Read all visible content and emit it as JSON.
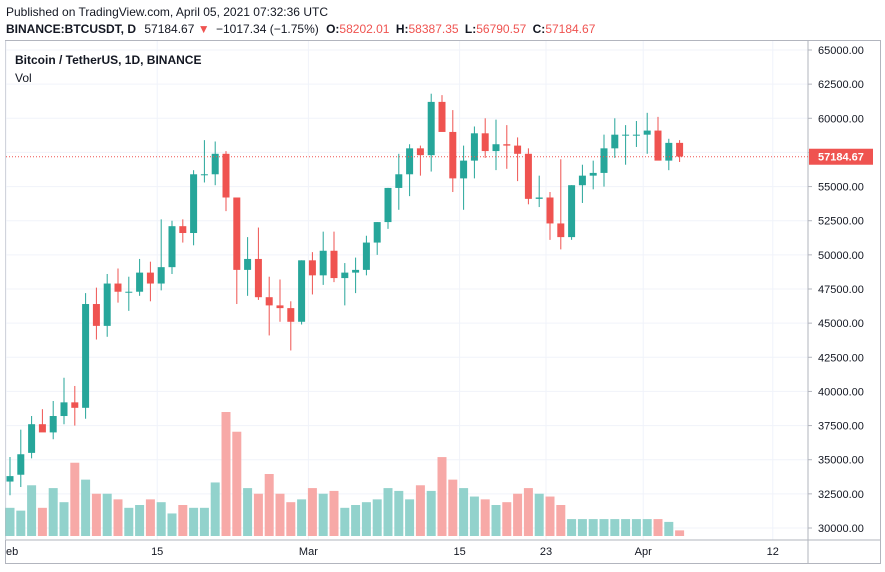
{
  "header": {
    "published": "Published on TradingView.com, April 05, 2021 07:32:36 UTC",
    "symbol_line": "BINANCE:BTCUSDT, D",
    "last": "57184.67",
    "arrow": "▼",
    "change": "−1017.34 (−1.75%)",
    "o_label": "O:",
    "o": "58202.01",
    "h_label": "H:",
    "h": "58387.35",
    "l_label": "L:",
    "l": "56790.57",
    "c_label": "C:",
    "c": "57184.67"
  },
  "legend": {
    "title": "Bitcoin / TetherUS, 1D, BINANCE",
    "volume": "Vol"
  },
  "colors": {
    "up": "#26a69a",
    "down": "#ef5350",
    "vol_up": "#92d2cc",
    "vol_down": "#f7a9a7",
    "grid": "#f0f3fa",
    "price_line": "#ef5350"
  },
  "chart_data": {
    "type": "candlestick",
    "y_ticks": [
      "65000.00",
      "62500.00",
      "60000.00",
      "57500.00",
      "55000.00",
      "52500.00",
      "50000.00",
      "47500.00",
      "45000.00",
      "42500.00",
      "40000.00",
      "37500.00",
      "35000.00",
      "32500.00",
      "30000.00"
    ],
    "x_ticks": [
      "eb",
      "15",
      "Mar",
      "15",
      "23",
      "Apr",
      "12"
    ],
    "last_price_label": "57184.67",
    "last_price": 57184.67,
    "candles": [
      {
        "o": 33400,
        "h": 35200,
        "l": 32400,
        "c": 33800
      },
      {
        "o": 33900,
        "h": 37200,
        "l": 33000,
        "c": 35400
      },
      {
        "o": 35500,
        "h": 38200,
        "l": 35100,
        "c": 37600
      },
      {
        "o": 37600,
        "h": 38700,
        "l": 37100,
        "c": 37000
      },
      {
        "o": 37000,
        "h": 39300,
        "l": 36500,
        "c": 38200
      },
      {
        "o": 38200,
        "h": 41000,
        "l": 37600,
        "c": 39200
      },
      {
        "o": 39200,
        "h": 40400,
        "l": 37500,
        "c": 38800
      },
      {
        "o": 38800,
        "h": 47200,
        "l": 38000,
        "c": 46400
      },
      {
        "o": 46400,
        "h": 47600,
        "l": 43800,
        "c": 44800
      },
      {
        "o": 44800,
        "h": 48600,
        "l": 44000,
        "c": 47900
      },
      {
        "o": 47900,
        "h": 49000,
        "l": 46500,
        "c": 47300
      },
      {
        "o": 47300,
        "h": 48400,
        "l": 45900,
        "c": 47300
      },
      {
        "o": 47300,
        "h": 49700,
        "l": 47000,
        "c": 48700
      },
      {
        "o": 48700,
        "h": 49500,
        "l": 46600,
        "c": 47900
      },
      {
        "o": 47900,
        "h": 52600,
        "l": 47400,
        "c": 49100
      },
      {
        "o": 49100,
        "h": 52500,
        "l": 48600,
        "c": 52100
      },
      {
        "o": 52100,
        "h": 52600,
        "l": 50900,
        "c": 51600
      },
      {
        "o": 51600,
        "h": 56200,
        "l": 50700,
        "c": 55900
      },
      {
        "o": 55900,
        "h": 58400,
        "l": 55300,
        "c": 55900
      },
      {
        "o": 55900,
        "h": 58300,
        "l": 55100,
        "c": 57400
      },
      {
        "o": 57400,
        "h": 57600,
        "l": 53200,
        "c": 54200
      },
      {
        "o": 54200,
        "h": 54200,
        "l": 46400,
        "c": 48900
      },
      {
        "o": 48900,
        "h": 51300,
        "l": 47000,
        "c": 49700
      },
      {
        "o": 49700,
        "h": 52000,
        "l": 46700,
        "c": 46900
      },
      {
        "o": 46900,
        "h": 48400,
        "l": 44100,
        "c": 46300
      },
      {
        "o": 46300,
        "h": 48200,
        "l": 45100,
        "c": 46100
      },
      {
        "o": 46100,
        "h": 46600,
        "l": 43000,
        "c": 45100
      },
      {
        "o": 45100,
        "h": 49600,
        "l": 44900,
        "c": 49600
      },
      {
        "o": 49600,
        "h": 50200,
        "l": 47100,
        "c": 48500
      },
      {
        "o": 48500,
        "h": 51700,
        "l": 47800,
        "c": 50300
      },
      {
        "o": 50300,
        "h": 51700,
        "l": 48000,
        "c": 48300
      },
      {
        "o": 48300,
        "h": 49400,
        "l": 46300,
        "c": 48700
      },
      {
        "o": 48700,
        "h": 49800,
        "l": 47200,
        "c": 48900
      },
      {
        "o": 48900,
        "h": 51400,
        "l": 48500,
        "c": 50900
      },
      {
        "o": 50900,
        "h": 52400,
        "l": 50000,
        "c": 52400
      },
      {
        "o": 52400,
        "h": 54900,
        "l": 51900,
        "c": 54900
      },
      {
        "o": 54900,
        "h": 57400,
        "l": 53300,
        "c": 55900
      },
      {
        "o": 55900,
        "h": 58100,
        "l": 54300,
        "c": 57800
      },
      {
        "o": 57800,
        "h": 58000,
        "l": 55800,
        "c": 57300
      },
      {
        "o": 57300,
        "h": 61800,
        "l": 56100,
        "c": 61200
      },
      {
        "o": 61200,
        "h": 61700,
        "l": 59200,
        "c": 59000
      },
      {
        "o": 59000,
        "h": 60600,
        "l": 54600,
        "c": 55600
      },
      {
        "o": 55600,
        "h": 58000,
        "l": 53300,
        "c": 56900
      },
      {
        "o": 56900,
        "h": 59400,
        "l": 55600,
        "c": 58900
      },
      {
        "o": 58900,
        "h": 60000,
        "l": 57100,
        "c": 57600
      },
      {
        "o": 57600,
        "h": 59900,
        "l": 56200,
        "c": 58100
      },
      {
        "o": 58100,
        "h": 59500,
        "l": 56300,
        "c": 58000
      },
      {
        "o": 58000,
        "h": 58600,
        "l": 55400,
        "c": 57400
      },
      {
        "o": 57400,
        "h": 57800,
        "l": 53700,
        "c": 54100
      },
      {
        "o": 54100,
        "h": 55800,
        "l": 53500,
        "c": 54200
      },
      {
        "o": 54200,
        "h": 54600,
        "l": 51100,
        "c": 52300
      },
      {
        "o": 52300,
        "h": 57000,
        "l": 50400,
        "c": 51300
      },
      {
        "o": 51300,
        "h": 55100,
        "l": 51100,
        "c": 55100
      },
      {
        "o": 55100,
        "h": 56600,
        "l": 53800,
        "c": 55800
      },
      {
        "o": 55800,
        "h": 56900,
        "l": 54800,
        "c": 56000
      },
      {
        "o": 56000,
        "h": 58800,
        "l": 55000,
        "c": 57800
      },
      {
        "o": 57800,
        "h": 60000,
        "l": 57100,
        "c": 58800
      },
      {
        "o": 58800,
        "h": 59500,
        "l": 56600,
        "c": 58800
      },
      {
        "o": 58800,
        "h": 59800,
        "l": 57900,
        "c": 58800
      },
      {
        "o": 58800,
        "h": 60400,
        "l": 57400,
        "c": 59100
      },
      {
        "o": 59100,
        "h": 60100,
        "l": 57000,
        "c": 56900
      },
      {
        "o": 56900,
        "h": 58500,
        "l": 56200,
        "c": 58200
      },
      {
        "o": 58200,
        "h": 58400,
        "l": 56800,
        "c": 57200
      }
    ],
    "volumes_pct": [
      10,
      9,
      18,
      10,
      17,
      12,
      26,
      20,
      15,
      15,
      13,
      10,
      11,
      13,
      12,
      8,
      11,
      10,
      10,
      19,
      44,
      37,
      17,
      15,
      22,
      15,
      12,
      13,
      17,
      15,
      16,
      10,
      11,
      12,
      13,
      17,
      16,
      13,
      18,
      16,
      28,
      20,
      17,
      14,
      13,
      11,
      12,
      15,
      17,
      15,
      14,
      11,
      6,
      6,
      6,
      6,
      6,
      6,
      6,
      6,
      6,
      5,
      2
    ]
  }
}
